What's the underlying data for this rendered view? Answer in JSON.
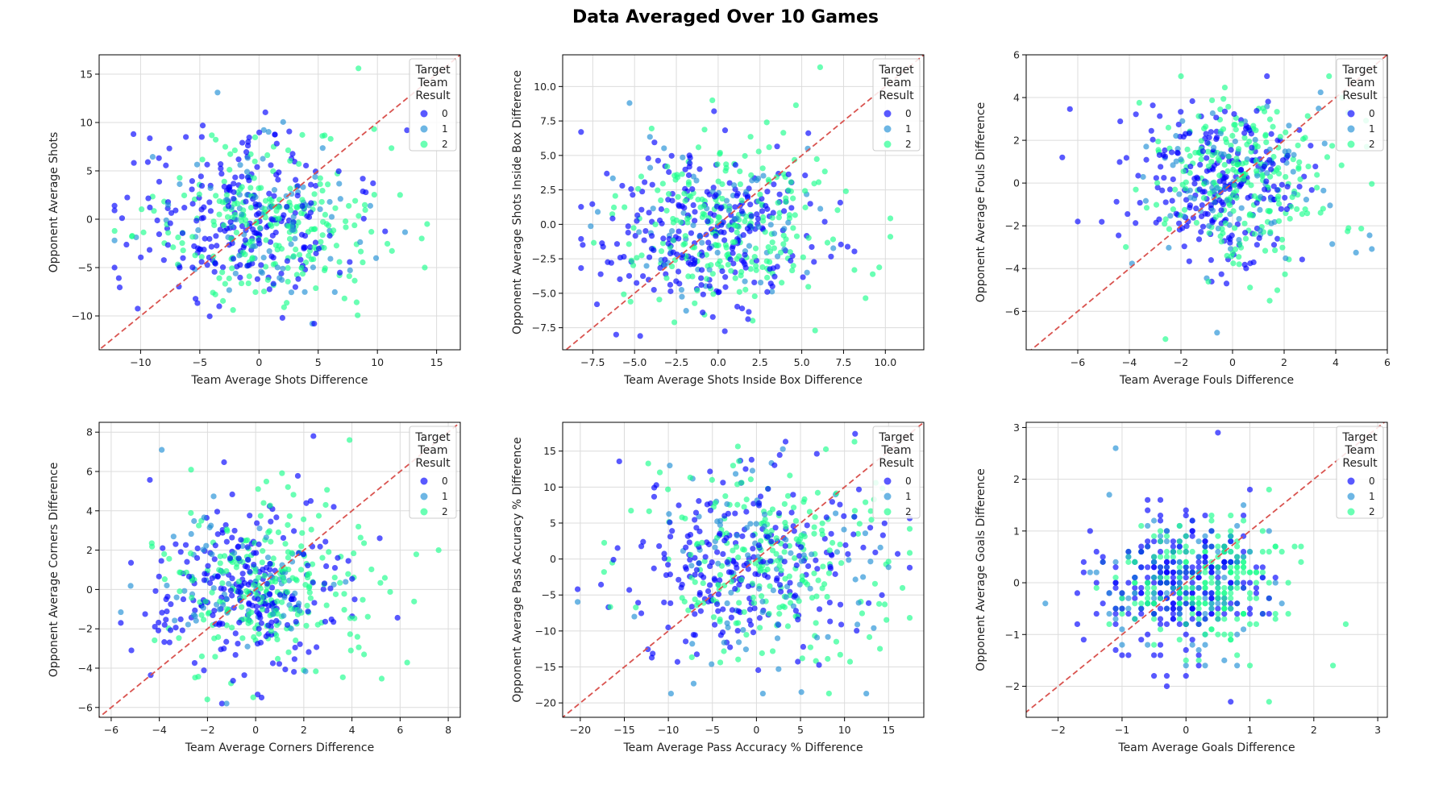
{
  "figure": {
    "title": "Data Averaged Over 10 Games"
  },
  "legend": {
    "title_lines": [
      "Target",
      "Team",
      "Result"
    ],
    "entries": [
      {
        "label": "0",
        "color": "#0000ff"
      },
      {
        "label": "1",
        "color": "#1f8fd6"
      },
      {
        "label": "2",
        "color": "#1aff8c"
      }
    ]
  },
  "colors": {
    "diagonal": "#d9534f",
    "grid": "#dcdcdc",
    "axis": "#000000"
  },
  "chart_data": [
    {
      "type": "scatter",
      "title": "",
      "xlabel": "Team Average Shots Difference",
      "ylabel": "Opponent Average Shots",
      "xlim": [
        -13.5,
        17
      ],
      "ylim": [
        -13.5,
        17
      ],
      "xticks": [
        -10,
        -5,
        0,
        5,
        10,
        15
      ],
      "yticks": [
        -10,
        -5,
        0,
        5,
        10,
        15
      ],
      "xtick_labels": [
        "−10",
        "−5",
        "0",
        "5",
        "10",
        "15"
      ],
      "ytick_labels": [
        "−10",
        "−5",
        "0",
        "5",
        "10",
        "15"
      ],
      "spread": {
        "cx": 0,
        "cy": -0.2,
        "sx": 4.6,
        "sy": 4.4,
        "clampX": [
          -12.2,
          14.2
        ],
        "clampY": [
          -10.8,
          15.6
        ],
        "step": 0
      },
      "sample_points": [
        {
          "x": -12.2,
          "y": -5.0,
          "result": 0
        },
        {
          "x": -10.6,
          "y": 8.8,
          "result": 0
        },
        {
          "x": 8.4,
          "y": 15.6,
          "result": 2
        },
        {
          "x": 14.2,
          "y": -0.5,
          "result": 2
        },
        {
          "x": 14.0,
          "y": -5.0,
          "result": 2
        },
        {
          "x": 4.5,
          "y": -10.8,
          "result": 1
        },
        {
          "x": -3.5,
          "y": 13.1,
          "result": 1
        },
        {
          "x": 12.5,
          "y": 9.2,
          "result": 0
        }
      ],
      "legend_loc": "upper right",
      "grid": true
    },
    {
      "type": "scatter",
      "title": "",
      "xlabel": "Team Average Shots Inside Box Difference",
      "ylabel": "Opponent Average Shots Inside Box Difference",
      "xlim": [
        -9.3,
        12.3
      ],
      "ylim": [
        -9.1,
        12.3
      ],
      "xticks": [
        -7.5,
        -5.0,
        -2.5,
        0.0,
        2.5,
        5.0,
        7.5,
        10.0
      ],
      "yticks": [
        -7.5,
        -5.0,
        -2.5,
        0.0,
        2.5,
        5.0,
        7.5,
        10.0
      ],
      "xtick_labels": [
        "−7.5",
        "−5.0",
        "−2.5",
        "0.0",
        "2.5",
        "5.0",
        "7.5",
        "10.0"
      ],
      "ytick_labels": [
        "−7.5",
        "−5.0",
        "−2.5",
        "0.0",
        "2.5",
        "5.0",
        "7.5",
        "10.0"
      ],
      "spread": {
        "cx": 0,
        "cy": -0.3,
        "sx": 3.2,
        "sy": 3.0,
        "clampX": [
          -8.2,
          10.3
        ],
        "clampY": [
          -8.1,
          11.4
        ],
        "step": 0
      },
      "sample_points": [
        {
          "x": -8.2,
          "y": 6.7,
          "result": 0
        },
        {
          "x": 6.1,
          "y": 11.4,
          "result": 2
        },
        {
          "x": -6.1,
          "y": -8.0,
          "result": 0
        },
        {
          "x": 10.3,
          "y": -0.9,
          "result": 2
        },
        {
          "x": -5.3,
          "y": 8.8,
          "result": 1
        },
        {
          "x": 5.8,
          "y": -7.7,
          "result": 2
        }
      ],
      "legend_loc": "upper right",
      "grid": true
    },
    {
      "type": "scatter",
      "title": "",
      "xlabel": "Team Average Fouls Difference",
      "ylabel": "Opponent Average Fouls Difference",
      "xlim": [
        -8,
        6
      ],
      "ylim": [
        -7.8,
        6
      ],
      "xticks": [
        -6,
        -4,
        -2,
        0,
        2,
        4,
        6
      ],
      "yticks": [
        -6,
        -4,
        -2,
        0,
        2,
        4,
        6
      ],
      "xtick_labels": [
        "−6",
        "−4",
        "−2",
        "0",
        "2",
        "4",
        "6"
      ],
      "ytick_labels": [
        "−6",
        "−4",
        "−2",
        "0",
        "2",
        "4",
        "6"
      ],
      "spread": {
        "cx": 0,
        "cy": 0.1,
        "sx": 1.8,
        "sy": 1.9,
        "clampX": [
          -6.6,
          5.4
        ],
        "clampY": [
          -7.3,
          5.0
        ],
        "step": 0
      },
      "sample_points": [
        {
          "x": -6.6,
          "y": 1.2,
          "result": 0
        },
        {
          "x": -6.0,
          "y": -1.8,
          "result": 0
        },
        {
          "x": -2.6,
          "y": -7.3,
          "result": 2
        },
        {
          "x": -0.6,
          "y": -7.0,
          "result": 1
        },
        {
          "x": -2.0,
          "y": 5.0,
          "result": 2
        },
        {
          "x": 5.2,
          "y": 1.7,
          "result": 2
        }
      ],
      "legend_loc": "upper right",
      "grid": true
    },
    {
      "type": "scatter",
      "title": "",
      "xlabel": "Team Average Corners Difference",
      "ylabel": "Opponent Average Corners Difference",
      "xlim": [
        -6.5,
        8.5
      ],
      "ylim": [
        -6.5,
        8.5
      ],
      "xticks": [
        -6,
        -4,
        -2,
        0,
        2,
        4,
        6,
        8
      ],
      "yticks": [
        -6,
        -4,
        -2,
        0,
        2,
        4,
        6,
        8
      ],
      "xtick_labels": [
        "−6",
        "−4",
        "−2",
        "0",
        "2",
        "4",
        "6",
        "8"
      ],
      "ytick_labels": [
        "−6",
        "−4",
        "−2",
        "0",
        "2",
        "4",
        "6",
        "8"
      ],
      "spread": {
        "cx": 0,
        "cy": 0,
        "sx": 2.1,
        "sy": 2.1,
        "clampX": [
          -5.6,
          7.6
        ],
        "clampY": [
          -5.8,
          7.8
        ],
        "step": 0
      },
      "sample_points": [
        {
          "x": -3.9,
          "y": 7.1,
          "result": 1
        },
        {
          "x": 2.4,
          "y": 7.8,
          "result": 0
        },
        {
          "x": 3.9,
          "y": 7.6,
          "result": 2
        },
        {
          "x": 7.6,
          "y": 2.0,
          "result": 2
        },
        {
          "x": -1.4,
          "y": -5.8,
          "result": 0
        },
        {
          "x": -5.6,
          "y": -1.7,
          "result": 0
        }
      ],
      "legend_loc": "upper right",
      "grid": true
    },
    {
      "type": "scatter",
      "title": "",
      "xlabel": "Team Average Pass Accuracy % Difference",
      "ylabel": "Opponent Average Pass Accuracy % Difference",
      "xlim": [
        -22,
        19
      ],
      "ylim": [
        -22,
        19
      ],
      "xticks": [
        -20,
        -15,
        -10,
        -5,
        0,
        5,
        10,
        15
      ],
      "yticks": [
        -20,
        -15,
        -10,
        -5,
        0,
        5,
        10,
        15
      ],
      "xtick_labels": [
        "−20",
        "−15",
        "−10",
        "−5",
        "0",
        "5",
        "10",
        "15"
      ],
      "ytick_labels": [
        "−20",
        "−15",
        "−10",
        "−5",
        "0",
        "5",
        "10",
        "15"
      ],
      "spread": {
        "cx": 0,
        "cy": -0.5,
        "sx": 6.5,
        "sy": 7.0,
        "clampX": [
          -20.3,
          17.4
        ],
        "clampY": [
          -18.7,
          17.4
        ],
        "step": 0
      },
      "sample_points": [
        {
          "x": -20.3,
          "y": -4.2,
          "result": 0
        },
        {
          "x": -9.7,
          "y": -18.7,
          "result": 1
        },
        {
          "x": 5.1,
          "y": -18.5,
          "result": 1
        },
        {
          "x": 17.4,
          "y": -1.2,
          "result": 0
        },
        {
          "x": 11.2,
          "y": 17.4,
          "result": 0
        },
        {
          "x": -17.3,
          "y": -1.8,
          "result": 2
        }
      ],
      "legend_loc": "upper right",
      "grid": true
    },
    {
      "type": "scatter",
      "title": "",
      "xlabel": "Team Average Goals Difference",
      "ylabel": "Opponent Average Goals Difference",
      "xlim": [
        -2.5,
        3.15
      ],
      "ylim": [
        -2.6,
        3.1
      ],
      "xticks": [
        -2,
        -1,
        0,
        1,
        2,
        3
      ],
      "yticks": [
        -2,
        -1,
        0,
        1,
        2,
        3
      ],
      "xtick_labels": [
        "−2",
        "−1",
        "0",
        "1",
        "2",
        "3"
      ],
      "ytick_labels": [
        "−2",
        "−1",
        "0",
        "1",
        "2",
        "3"
      ],
      "spread": {
        "cx": 0,
        "cy": 0,
        "sx": 0.65,
        "sy": 0.65,
        "clampX": [
          -2.2,
          2.5
        ],
        "clampY": [
          -2.3,
          2.9
        ],
        "step": 0.1
      },
      "sample_points": [
        {
          "x": -2.2,
          "y": -0.4,
          "result": 1
        },
        {
          "x": -1.1,
          "y": 2.6,
          "result": 1
        },
        {
          "x": 0.5,
          "y": 2.9,
          "result": 0
        },
        {
          "x": 2.5,
          "y": -0.8,
          "result": 2
        },
        {
          "x": 1.3,
          "y": -2.3,
          "result": 2
        },
        {
          "x": 2.3,
          "y": -1.6,
          "result": 2
        }
      ],
      "legend_loc": "upper right",
      "grid": true
    }
  ]
}
